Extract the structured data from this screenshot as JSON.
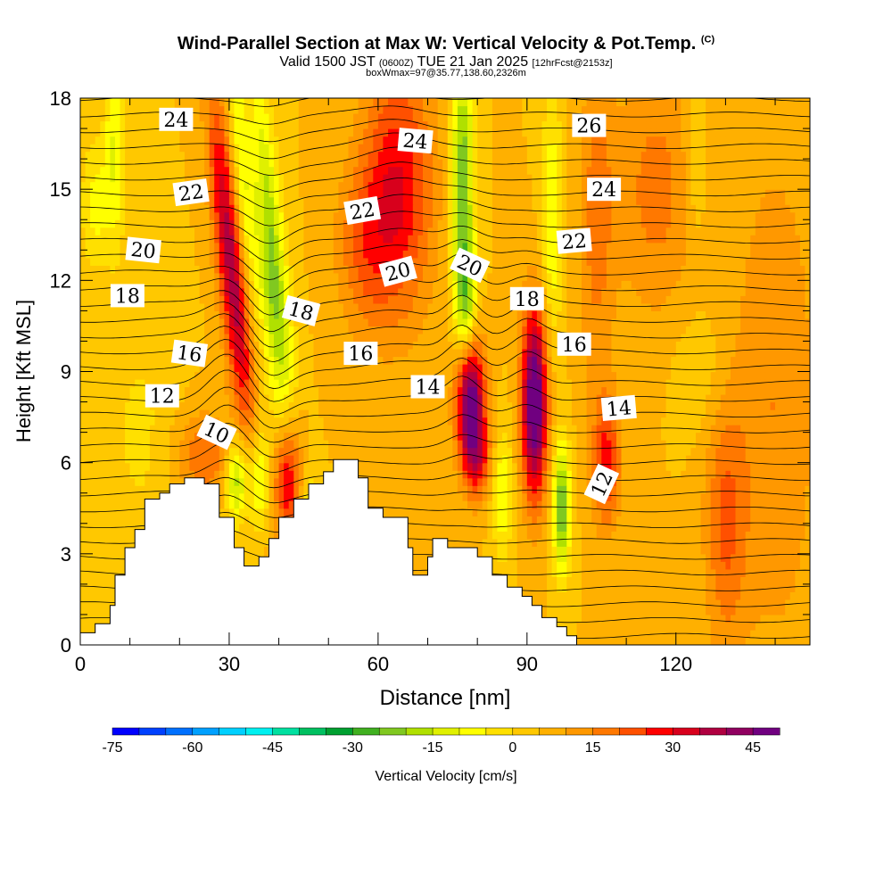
{
  "header": {
    "title_main": "Wind-Parallel Section at Max W: Vertical Velocity & Pot.Temp.",
    "title_copyright": "(C)",
    "valid_prefix": "Valid 1500 JST",
    "valid_utc": "(0600Z)",
    "valid_date": "TUE 21 Jan 2025",
    "forecast": "[12hrFcst@2153z]",
    "boxinfo": "boxWmax=97@35.77,138.60,2326m"
  },
  "chart_data": {
    "type": "heatmap",
    "xlabel": "Distance [nm]",
    "ylabel": "Height [Kft MSL]",
    "xlim": [
      0,
      147
    ],
    "ylim": [
      0,
      18
    ],
    "x_ticks": [
      0,
      30,
      60,
      90,
      120
    ],
    "y_ticks": [
      0,
      3,
      6,
      9,
      12,
      15,
      18
    ],
    "colorbar": {
      "label": "Vertical Velocity [cm/s]",
      "ticks": [
        -75,
        -60,
        -45,
        -30,
        -15,
        0,
        15,
        30,
        45
      ],
      "min": -75,
      "max": 50,
      "step": 5,
      "colors": [
        "#0000ff",
        "#0040ff",
        "#0070ff",
        "#00a0ff",
        "#00d0ff",
        "#00f0f0",
        "#00e0a0",
        "#00c060",
        "#00a030",
        "#40b020",
        "#80c820",
        "#b0e000",
        "#e0f000",
        "#ffff00",
        "#ffe000",
        "#ffc800",
        "#ffb000",
        "#ff9800",
        "#ff7800",
        "#ff5000",
        "#ff0000",
        "#d8001c",
        "#b00040",
        "#900060",
        "#700080"
      ]
    },
    "terrain": [
      [
        0,
        0.4
      ],
      [
        3,
        0.4
      ],
      [
        3,
        0.7
      ],
      [
        6,
        0.7
      ],
      [
        6,
        1.3
      ],
      [
        7,
        1.3
      ],
      [
        7,
        2.3
      ],
      [
        9,
        2.3
      ],
      [
        9,
        3.2
      ],
      [
        11,
        3.2
      ],
      [
        11,
        3.8
      ],
      [
        13,
        3.8
      ],
      [
        13,
        4.8
      ],
      [
        16,
        4.8
      ],
      [
        16,
        5.0
      ],
      [
        18,
        5.0
      ],
      [
        18,
        5.3
      ],
      [
        21,
        5.3
      ],
      [
        21,
        5.5
      ],
      [
        25,
        5.5
      ],
      [
        25,
        5.3
      ],
      [
        28,
        5.3
      ],
      [
        28,
        4.2
      ],
      [
        31,
        4.2
      ],
      [
        31,
        3.2
      ],
      [
        33,
        3.2
      ],
      [
        33,
        2.6
      ],
      [
        36,
        2.6
      ],
      [
        36,
        2.9
      ],
      [
        38,
        2.9
      ],
      [
        38,
        3.5
      ],
      [
        40,
        3.5
      ],
      [
        40,
        4.2
      ],
      [
        43,
        4.2
      ],
      [
        43,
        4.8
      ],
      [
        46,
        4.8
      ],
      [
        46,
        5.3
      ],
      [
        49,
        5.3
      ],
      [
        49,
        5.7
      ],
      [
        51,
        5.7
      ],
      [
        51,
        6.1
      ],
      [
        56,
        6.1
      ],
      [
        56,
        5.5
      ],
      [
        58,
        5.5
      ],
      [
        58,
        4.5
      ],
      [
        61,
        4.5
      ],
      [
        61,
        4.2
      ],
      [
        66,
        4.2
      ],
      [
        66,
        3.2
      ],
      [
        67,
        3.2
      ],
      [
        67,
        2.3
      ],
      [
        70,
        2.3
      ],
      [
        70,
        2.9
      ],
      [
        71,
        2.9
      ],
      [
        71,
        3.5
      ],
      [
        74,
        3.5
      ],
      [
        74,
        3.2
      ],
      [
        80,
        3.2
      ],
      [
        80,
        2.9
      ],
      [
        83,
        2.9
      ],
      [
        83,
        2.3
      ],
      [
        86,
        2.3
      ],
      [
        86,
        1.9
      ],
      [
        89,
        1.9
      ],
      [
        89,
        1.6
      ],
      [
        91,
        1.6
      ],
      [
        91,
        1.3
      ],
      [
        93,
        1.3
      ],
      [
        93,
        0.9
      ],
      [
        96,
        0.9
      ],
      [
        96,
        0.6
      ],
      [
        98,
        0.6
      ],
      [
        98,
        0.3
      ],
      [
        100,
        0.3
      ],
      [
        100,
        0
      ]
    ],
    "w_field": {
      "background": 5,
      "features": [
        {
          "x": 30.5,
          "y": 12.5,
          "sx": 2.0,
          "sy": 4.0,
          "tilt": -0.6,
          "w": 35
        },
        {
          "x": 34.5,
          "y": 16.0,
          "sx": 1.6,
          "sy": 3.0,
          "tilt": -0.5,
          "w": 18
        },
        {
          "x": 38.0,
          "y": 13.0,
          "sx": 2.2,
          "sy": 4.5,
          "tilt": -0.6,
          "w": -30
        },
        {
          "x": 33.0,
          "y": 15.5,
          "sx": 1.8,
          "sy": 3.0,
          "tilt": -0.4,
          "w": -20
        },
        {
          "x": 42.0,
          "y": 5.5,
          "sx": 2.0,
          "sy": 1.5,
          "tilt": 0,
          "w": 30
        },
        {
          "x": 36.0,
          "y": 5.5,
          "sx": 1.5,
          "sy": 1.3,
          "tilt": 0,
          "w": -20
        },
        {
          "x": 31.5,
          "y": 5.5,
          "sx": 1.6,
          "sy": 1.0,
          "tilt": 0,
          "w": -25
        },
        {
          "x": 46.0,
          "y": 4.6,
          "sx": 1.3,
          "sy": 1.0,
          "tilt": 0,
          "w": -10
        },
        {
          "x": 64.0,
          "y": 15.0,
          "sx": 5.0,
          "sy": 3.0,
          "tilt": 0,
          "w": 25
        },
        {
          "x": 57.0,
          "y": 13.0,
          "sx": 4.0,
          "sy": 2.0,
          "tilt": 0,
          "w": 12
        },
        {
          "x": 77.0,
          "y": 15.0,
          "sx": 1.6,
          "sy": 3.5,
          "tilt": 0,
          "w": -30
        },
        {
          "x": 78.0,
          "y": 11.0,
          "sx": 1.5,
          "sy": 1.5,
          "tilt": 0,
          "w": -18
        },
        {
          "x": 78.5,
          "y": 8.2,
          "sx": 2.0,
          "sy": 1.5,
          "tilt": 0,
          "w": 48
        },
        {
          "x": 80.0,
          "y": 6.2,
          "sx": 2.0,
          "sy": 1.0,
          "tilt": 0,
          "w": 20
        },
        {
          "x": 85.0,
          "y": 5.0,
          "sx": 1.5,
          "sy": 1.5,
          "tilt": 0,
          "w": -15
        },
        {
          "x": 91.5,
          "y": 8.0,
          "sx": 1.8,
          "sy": 2.2,
          "tilt": 0,
          "w": 50
        },
        {
          "x": 97.0,
          "y": 4.5,
          "sx": 1.2,
          "sy": 1.5,
          "tilt": 0,
          "w": -32
        },
        {
          "x": 95.0,
          "y": 14.0,
          "sx": 1.5,
          "sy": 3.0,
          "tilt": 0,
          "w": -15
        },
        {
          "x": 106.0,
          "y": 6.0,
          "sx": 2.0,
          "sy": 1.5,
          "tilt": 0,
          "w": 22
        },
        {
          "x": 7.0,
          "y": 16.5,
          "sx": 1.5,
          "sy": 2.5,
          "tilt": 0,
          "w": -15
        },
        {
          "x": 3.0,
          "y": 14.5,
          "sx": 2.0,
          "sy": 1.5,
          "tilt": 0,
          "w": -12
        },
        {
          "x": 25.0,
          "y": 6.2,
          "sx": 4.0,
          "sy": 1.0,
          "tilt": 0,
          "w": 15
        },
        {
          "x": 12.0,
          "y": 7.0,
          "sx": 5.0,
          "sy": 3.0,
          "tilt": 0,
          "w": -6
        },
        {
          "x": 130.0,
          "y": 4.0,
          "sx": 3.0,
          "sy": 3.0,
          "tilt": 0,
          "w": 15
        },
        {
          "x": 140.0,
          "y": 8.0,
          "sx": 6.0,
          "sy": 6.0,
          "tilt": 0,
          "w": 10
        },
        {
          "x": 116.0,
          "y": 15.0,
          "sx": 6.0,
          "sy": 3.0,
          "tilt": 0,
          "w": 12
        },
        {
          "x": 104.0,
          "y": 14.0,
          "sx": 2.5,
          "sy": 4.0,
          "tilt": 0,
          "w": 12
        },
        {
          "x": 124.0,
          "y": 16.0,
          "sx": 1.6,
          "sy": 2.0,
          "tilt": 0,
          "w": -8
        },
        {
          "x": 125.0,
          "y": 9.0,
          "sx": 4.0,
          "sy": 1.5,
          "tilt": 0,
          "w": -5
        }
      ]
    },
    "theta_labels": [
      {
        "x": 19.3,
        "y": 17.3,
        "text": "24",
        "angle": 0
      },
      {
        "x": 22.3,
        "y": 14.9,
        "text": "22",
        "angle": -8
      },
      {
        "x": 12.7,
        "y": 13.0,
        "text": "20",
        "angle": 6
      },
      {
        "x": 9.5,
        "y": 11.5,
        "text": "18",
        "angle": 0
      },
      {
        "x": 22.0,
        "y": 9.6,
        "text": "16",
        "angle": 8
      },
      {
        "x": 16.5,
        "y": 8.2,
        "text": "12",
        "angle": 0
      },
      {
        "x": 27.5,
        "y": 7.0,
        "text": "10",
        "angle": 25
      },
      {
        "x": 44.5,
        "y": 11.0,
        "text": "18",
        "angle": 15
      },
      {
        "x": 56.8,
        "y": 14.3,
        "text": "22",
        "angle": -10
      },
      {
        "x": 64.0,
        "y": 12.3,
        "text": "20",
        "angle": -15
      },
      {
        "x": 56.5,
        "y": 9.6,
        "text": "16",
        "angle": 0
      },
      {
        "x": 67.5,
        "y": 16.6,
        "text": "24",
        "angle": 5
      },
      {
        "x": 70.0,
        "y": 8.5,
        "text": "14",
        "angle": 0
      },
      {
        "x": 78.5,
        "y": 12.5,
        "text": "20",
        "angle": 25
      },
      {
        "x": 90.0,
        "y": 11.4,
        "text": "18",
        "angle": 0
      },
      {
        "x": 99.5,
        "y": 9.9,
        "text": "16",
        "angle": 0
      },
      {
        "x": 99.5,
        "y": 13.3,
        "text": "22",
        "angle": -5
      },
      {
        "x": 102.5,
        "y": 17.1,
        "text": "26",
        "angle": 0
      },
      {
        "x": 105.5,
        "y": 15.0,
        "text": "24",
        "angle": 0
      },
      {
        "x": 108.5,
        "y": 7.8,
        "text": "14",
        "angle": -5
      },
      {
        "x": 105.0,
        "y": 5.3,
        "text": "12",
        "angle": -65
      }
    ]
  }
}
